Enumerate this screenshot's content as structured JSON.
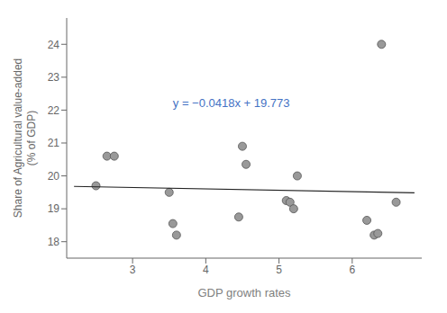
{
  "chart_data": {
    "type": "scatter",
    "xlabel": "GDP growth rates",
    "ylabel": "Share of Agricultural value-added\n(% of GDP)",
    "xlim": [
      2.1,
      6.95
    ],
    "ylim": [
      17.5,
      24.8
    ],
    "xticks": [
      3,
      4,
      5,
      6
    ],
    "yticks": [
      18,
      19,
      20,
      21,
      22,
      23,
      24
    ],
    "grid": false,
    "series": [
      {
        "type": "scatter",
        "color": "#999999",
        "x": [
          2.5,
          2.65,
          2.75,
          3.5,
          3.55,
          3.6,
          4.45,
          4.5,
          4.55,
          5.1,
          5.15,
          5.2,
          5.25,
          6.2,
          6.3,
          6.35,
          6.4,
          6.6
        ],
        "values": [
          19.7,
          20.6,
          20.6,
          19.5,
          18.55,
          18.2,
          18.75,
          20.9,
          20.35,
          19.25,
          19.2,
          19.0,
          20.0,
          18.65,
          18.2,
          18.25,
          24.0,
          19.2
        ]
      },
      {
        "type": "line",
        "color": "#222222",
        "x": [
          2.2,
          6.85
        ],
        "values": [
          19.68104,
          19.48667
        ]
      }
    ],
    "annotations": [
      {
        "text": "y = −0.0418x + 19.773",
        "x": 3.55,
        "y": 22.1,
        "color": "#4472c4"
      }
    ]
  }
}
